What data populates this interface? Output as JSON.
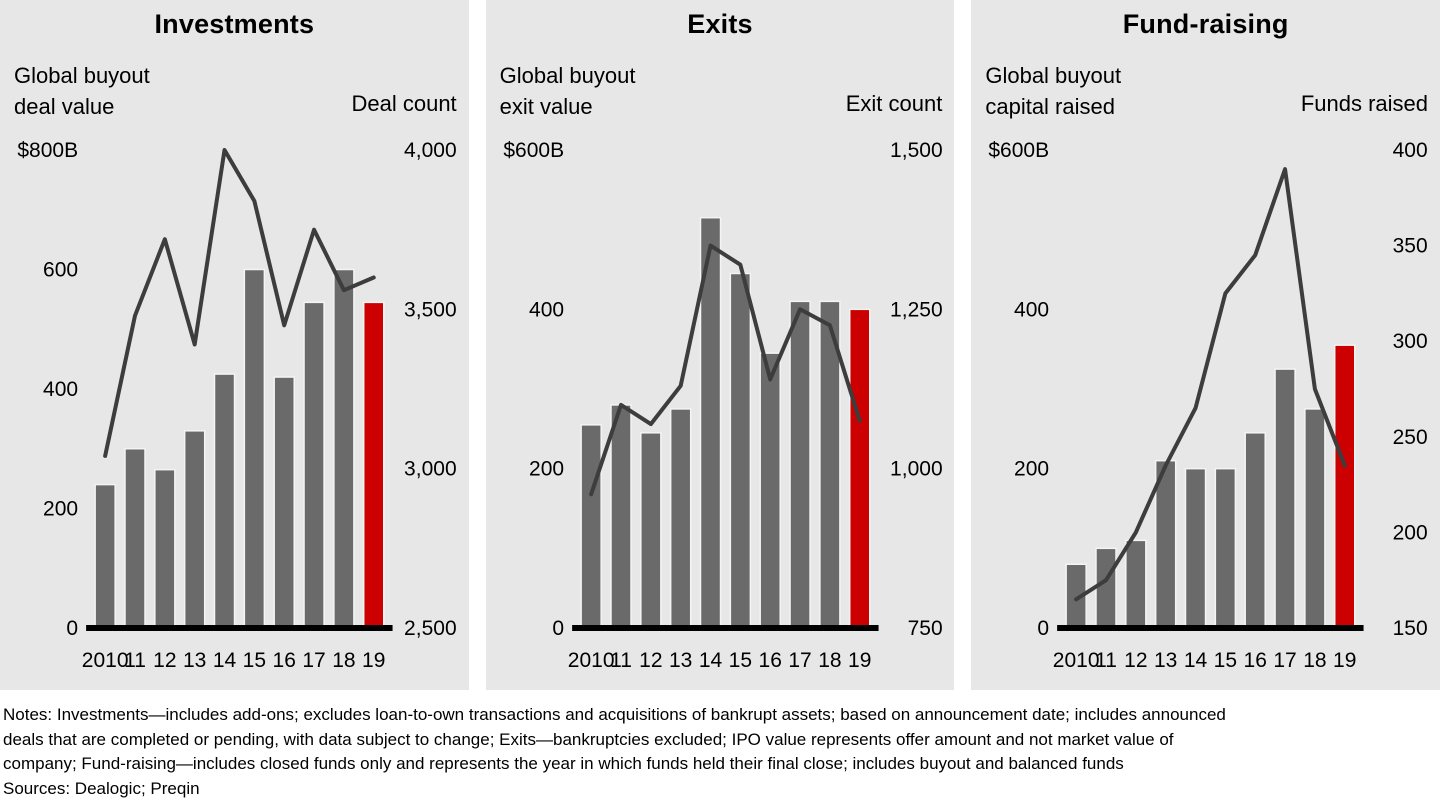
{
  "colors": {
    "page_bg": "#ffffff",
    "panel_bg": "#e7e7e8",
    "bar_gray": "#6a6a6a",
    "bar_red": "#cc0000",
    "bar_edge": "#f4f4f4",
    "trend_line": "#3d3d3d",
    "axis_black": "#000000",
    "text": "#000000"
  },
  "years": [
    "2010",
    "11",
    "12",
    "13",
    "14",
    "15",
    "16",
    "17",
    "18",
    "19"
  ],
  "chart_data": [
    {
      "type": "bar+line",
      "title": "Investments",
      "bar_axis_label1": "Global buyout",
      "bar_axis_label2": "deal value",
      "line_axis_label": "Deal count",
      "categories": [
        "2010",
        "11",
        "12",
        "13",
        "14",
        "15",
        "16",
        "17",
        "18",
        "19"
      ],
      "bars": {
        "name": "Global buyout deal value ($B)",
        "values": [
          240,
          300,
          265,
          330,
          425,
          600,
          420,
          545,
          600,
          545
        ],
        "highlight_last": true
      },
      "line": {
        "name": "Deal count",
        "values": [
          3040,
          3480,
          3720,
          3390,
          4000,
          3840,
          3450,
          3750,
          3560,
          3600
        ]
      },
      "bar_axis": {
        "min": 0,
        "max": 800,
        "ticks": [
          {
            "v": 0,
            "label": "0"
          },
          {
            "v": 200,
            "label": "200"
          },
          {
            "v": 400,
            "label": "400"
          },
          {
            "v": 600,
            "label": "600"
          },
          {
            "v": 800,
            "label": "$800B"
          }
        ]
      },
      "line_axis": {
        "min": 2500,
        "max": 4000,
        "ticks": [
          {
            "v": 2500,
            "label": "2,500"
          },
          {
            "v": 3000,
            "label": "3,000"
          },
          {
            "v": 3500,
            "label": "3,500"
          },
          {
            "v": 4000,
            "label": "4,000"
          }
        ]
      }
    },
    {
      "type": "bar+line",
      "title": "Exits",
      "bar_axis_label1": "Global buyout",
      "bar_axis_label2": "exit value",
      "line_axis_label": "Exit count",
      "categories": [
        "2010",
        "11",
        "12",
        "13",
        "14",
        "15",
        "16",
        "17",
        "18",
        "19"
      ],
      "bars": {
        "name": "Global buyout exit value ($B)",
        "values": [
          255,
          280,
          245,
          275,
          515,
          445,
          345,
          410,
          410,
          400
        ],
        "highlight_last": true
      },
      "line": {
        "name": "Exit count",
        "values": [
          960,
          1100,
          1070,
          1130,
          1350,
          1320,
          1140,
          1250,
          1225,
          1075
        ]
      },
      "bar_axis": {
        "min": 0,
        "max": 600,
        "ticks": [
          {
            "v": 0,
            "label": "0"
          },
          {
            "v": 200,
            "label": "200"
          },
          {
            "v": 400,
            "label": "400"
          },
          {
            "v": 600,
            "label": "$600B"
          }
        ]
      },
      "line_axis": {
        "min": 750,
        "max": 1500,
        "ticks": [
          {
            "v": 750,
            "label": "750"
          },
          {
            "v": 1000,
            "label": "1,000"
          },
          {
            "v": 1250,
            "label": "1,250"
          },
          {
            "v": 1500,
            "label": "1,500"
          }
        ]
      }
    },
    {
      "type": "bar+line",
      "title": "Fund-raising",
      "bar_axis_label1": "Global buyout",
      "bar_axis_label2": "capital raised",
      "line_axis_label": "Funds raised",
      "categories": [
        "2010",
        "11",
        "12",
        "13",
        "14",
        "15",
        "16",
        "17",
        "18",
        "19"
      ],
      "bars": {
        "name": "Global buyout capital raised ($B)",
        "values": [
          80,
          100,
          110,
          210,
          200,
          200,
          245,
          325,
          275,
          355
        ],
        "highlight_last": true
      },
      "line": {
        "name": "Funds raised",
        "values": [
          165,
          175,
          200,
          235,
          265,
          325,
          345,
          390,
          275,
          235
        ]
      },
      "bar_axis": {
        "min": 0,
        "max": 600,
        "ticks": [
          {
            "v": 0,
            "label": "0"
          },
          {
            "v": 200,
            "label": "200"
          },
          {
            "v": 400,
            "label": "400"
          },
          {
            "v": 600,
            "label": "$600B"
          }
        ]
      },
      "line_axis": {
        "min": 150,
        "max": 400,
        "ticks": [
          {
            "v": 150,
            "label": "150"
          },
          {
            "v": 200,
            "label": "200"
          },
          {
            "v": 250,
            "label": "250"
          },
          {
            "v": 300,
            "label": "300"
          },
          {
            "v": 350,
            "label": "350"
          },
          {
            "v": 400,
            "label": "400"
          }
        ]
      }
    }
  ],
  "notes": {
    "line1": "Notes: Investments—includes add-ons; excludes loan-to-own transactions and acquisitions of bankrupt assets; based on announcement date; includes announced",
    "line2": "deals that are completed or pending, with data subject to change; Exits—bankruptcies excluded; IPO value represents offer amount and not market value of",
    "line3": "company; Fund-raising—includes closed funds only and represents the year in which funds held their final close; includes buyout and balanced funds",
    "line4": "Sources: Dealogic; Preqin"
  }
}
